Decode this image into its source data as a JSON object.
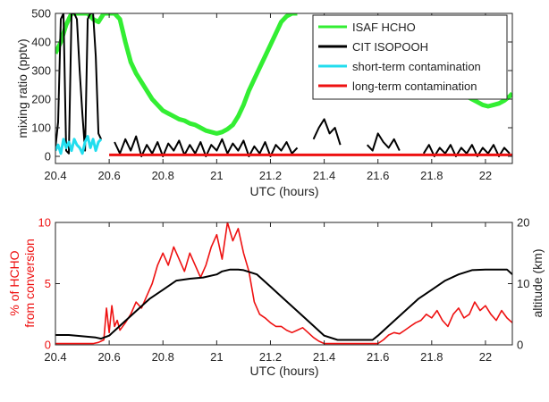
{
  "chart_data": [
    {
      "type": "line",
      "xlabel": "UTC (hours)",
      "ylabel": "mixing ratio (pptv)",
      "xlim": [
        20.4,
        22.1
      ],
      "ylim": [
        -25,
        500
      ],
      "xticks": [
        20.4,
        20.6,
        20.8,
        21,
        21.2,
        21.4,
        21.6,
        21.8,
        22
      ],
      "xtick_labels": [
        "20.4",
        "20.6",
        "20.8",
        "21",
        "21.2",
        "21.4",
        "21.6",
        "21.8",
        "22"
      ],
      "yticks": [
        0,
        100,
        200,
        300,
        400,
        500
      ],
      "ytick_labels": [
        "0",
        "100",
        "200",
        "300",
        "400",
        "500"
      ],
      "legend_position": "top-right",
      "series": [
        {
          "name": "ISAF HCHO",
          "color": "#33ee33",
          "x": [
            20.4,
            20.42,
            20.44,
            20.46,
            20.48,
            20.5,
            20.52,
            20.54,
            20.56,
            20.58,
            20.6,
            20.62,
            20.64,
            20.66,
            20.68,
            20.7,
            20.72,
            20.74,
            20.76,
            20.78,
            20.8,
            20.82,
            20.84,
            20.86,
            20.88,
            20.9,
            20.92,
            20.94,
            20.96,
            20.98,
            21.0,
            21.02,
            21.04,
            21.06,
            21.08,
            21.1,
            21.12,
            21.14,
            21.16,
            21.18,
            21.2,
            21.22,
            21.24,
            21.26,
            21.28,
            21.3,
            null,
            21.67,
            21.69,
            21.71,
            21.73,
            21.75,
            21.77,
            21.79,
            21.81,
            21.83,
            21.85,
            21.87,
            21.89,
            21.91,
            21.93,
            21.95,
            21.97,
            21.99,
            22.01,
            22.03,
            22.05,
            22.07,
            22.09,
            22.1
          ],
          "y": [
            360,
            400,
            460,
            500,
            500,
            500,
            500,
            480,
            470,
            500,
            500,
            500,
            480,
            400,
            330,
            290,
            260,
            230,
            200,
            180,
            160,
            150,
            140,
            130,
            125,
            115,
            110,
            100,
            90,
            85,
            80,
            85,
            95,
            110,
            140,
            180,
            230,
            270,
            310,
            350,
            390,
            430,
            470,
            490,
            500,
            500,
            null,
            420,
            400,
            360,
            330,
            300,
            280,
            260,
            250,
            240,
            235,
            230,
            225,
            220,
            210,
            200,
            190,
            180,
            175,
            180,
            185,
            195,
            210,
            220
          ]
        },
        {
          "name": "CIT ISOPOOH",
          "color": "#000000",
          "x": [
            20.4,
            20.41,
            20.42,
            20.43,
            20.44,
            20.45,
            20.46,
            20.47,
            20.48,
            20.49,
            20.5,
            20.51,
            20.52,
            20.53,
            20.54,
            20.55,
            20.56,
            20.57,
            null,
            20.62,
            20.64,
            20.66,
            20.68,
            20.7,
            20.72,
            20.74,
            20.76,
            20.78,
            20.8,
            20.82,
            20.84,
            20.86,
            20.88,
            20.9,
            20.92,
            20.94,
            20.96,
            20.98,
            21.0,
            21.02,
            21.04,
            21.06,
            21.08,
            21.1,
            21.12,
            21.14,
            21.16,
            21.18,
            21.2,
            21.22,
            21.24,
            21.26,
            21.28,
            21.3,
            null,
            21.36,
            21.38,
            21.4,
            21.42,
            21.44,
            21.46,
            null,
            21.56,
            21.58,
            21.6,
            21.62,
            21.64,
            21.66,
            21.68,
            null,
            21.77,
            21.79,
            21.81,
            21.83,
            21.85,
            21.87,
            21.89,
            21.91,
            21.93,
            21.95,
            21.97,
            21.99,
            22.01,
            22.03,
            22.05,
            22.07,
            22.09
          ],
          "y": [
            30,
            120,
            480,
            500,
            20,
            10,
            500,
            500,
            480,
            300,
            150,
            20,
            480,
            500,
            500,
            350,
            80,
            60,
            null,
            50,
            10,
            60,
            20,
            70,
            0,
            40,
            10,
            50,
            0,
            45,
            20,
            55,
            5,
            40,
            10,
            50,
            0,
            40,
            20,
            60,
            10,
            45,
            20,
            55,
            0,
            35,
            10,
            50,
            0,
            40,
            20,
            50,
            10,
            30,
            null,
            60,
            100,
            130,
            80,
            100,
            40,
            null,
            40,
            20,
            80,
            50,
            30,
            60,
            20,
            null,
            10,
            40,
            0,
            30,
            10,
            40,
            0,
            30,
            10,
            40,
            0,
            30,
            10,
            40,
            0,
            30,
            10
          ]
        },
        {
          "name": "short-term contamination",
          "color": "#22ddee",
          "x": [
            20.4,
            20.41,
            20.42,
            20.43,
            20.44,
            20.45,
            20.46,
            20.47,
            20.48,
            20.49,
            20.5,
            20.51,
            20.52,
            20.53,
            20.54,
            20.55,
            20.56,
            20.57
          ],
          "y": [
            20,
            40,
            10,
            60,
            30,
            50,
            20,
            60,
            40,
            30,
            10,
            50,
            70,
            30,
            60,
            20,
            50,
            60
          ]
        },
        {
          "name": "long-term contamination",
          "color": "#ee1111",
          "x": [
            20.6,
            22.1
          ],
          "y": [
            5,
            5
          ]
        }
      ]
    },
    {
      "type": "line",
      "xlabel": "UTC (hours)",
      "ylabel": "% of HCHO from conversion",
      "ylabel_lines": [
        "% of HCHO",
        "from conversion"
      ],
      "y2label": "altitude (km)",
      "xlim": [
        20.4,
        22.1
      ],
      "ylim": [
        0,
        10
      ],
      "y2lim": [
        0,
        20
      ],
      "xticks": [
        20.4,
        20.6,
        20.8,
        21,
        21.2,
        21.4,
        21.6,
        21.8,
        22
      ],
      "xtick_labels": [
        "20.4",
        "20.6",
        "20.8",
        "21",
        "21.2",
        "21.4",
        "21.6",
        "21.8",
        "22"
      ],
      "yticks": [
        0,
        5,
        10
      ],
      "ytick_labels": [
        "0",
        "5",
        "10"
      ],
      "y2ticks": [
        0,
        10,
        20
      ],
      "y2tick_labels": [
        "0",
        "10",
        "20"
      ],
      "series": [
        {
          "name": "% of HCHO from conversion",
          "axis": "left",
          "color": "#ee1111",
          "x": [
            20.4,
            20.42,
            20.44,
            20.46,
            20.48,
            20.5,
            20.52,
            20.54,
            20.56,
            20.58,
            20.59,
            20.6,
            20.61,
            20.62,
            20.63,
            20.64,
            20.66,
            20.68,
            20.7,
            20.72,
            20.74,
            20.76,
            20.78,
            20.8,
            20.82,
            20.84,
            20.86,
            20.88,
            20.9,
            20.92,
            20.94,
            20.96,
            20.98,
            21.0,
            21.02,
            21.04,
            21.06,
            21.08,
            21.1,
            21.12,
            21.14,
            21.16,
            21.18,
            21.2,
            21.22,
            21.24,
            21.26,
            21.28,
            21.3,
            21.32,
            21.34,
            21.36,
            21.38,
            21.4,
            21.42,
            21.44,
            21.46,
            21.48,
            21.5,
            21.52,
            21.54,
            21.56,
            21.58,
            21.6,
            21.62,
            21.64,
            21.66,
            21.68,
            21.7,
            21.72,
            21.74,
            21.76,
            21.78,
            21.8,
            21.82,
            21.84,
            21.86,
            21.88,
            21.9,
            21.92,
            21.94,
            21.96,
            21.98,
            22.0,
            22.02,
            22.04,
            22.06,
            22.08,
            22.1
          ],
          "y": [
            0.1,
            0.1,
            0.1,
            0.1,
            0.1,
            0.1,
            0.1,
            0.1,
            0.2,
            0.4,
            3.0,
            1.0,
            3.2,
            1.5,
            2.0,
            1.2,
            1.8,
            2.5,
            3.5,
            3.0,
            4.0,
            5.0,
            6.5,
            7.5,
            6.5,
            8.0,
            7.0,
            6.0,
            7.5,
            6.5,
            5.5,
            6.5,
            8.0,
            9.0,
            7.0,
            10.0,
            8.5,
            9.5,
            7.5,
            6.0,
            3.5,
            2.5,
            2.2,
            1.8,
            1.5,
            1.5,
            1.2,
            1.0,
            1.2,
            1.4,
            1.0,
            0.6,
            0.3,
            0.1,
            0.1,
            0.1,
            0.1,
            0.1,
            0.1,
            0.1,
            0.1,
            0.1,
            0.1,
            0.1,
            0.4,
            0.8,
            1.0,
            0.9,
            1.2,
            1.5,
            1.8,
            2.0,
            2.5,
            2.2,
            2.8,
            2.0,
            1.5,
            2.5,
            3.0,
            2.2,
            2.5,
            3.5,
            2.8,
            3.2,
            2.5,
            2.0,
            2.8,
            2.2,
            1.8
          ]
        },
        {
          "name": "altitude (km)",
          "axis": "right",
          "color": "#000000",
          "x": [
            20.4,
            20.45,
            20.5,
            20.55,
            20.57,
            20.6,
            20.65,
            20.7,
            20.75,
            20.8,
            20.85,
            20.9,
            20.95,
            21.0,
            21.02,
            21.05,
            21.08,
            21.1,
            21.15,
            21.2,
            21.25,
            21.3,
            21.35,
            21.4,
            21.45,
            21.5,
            21.55,
            21.58,
            21.6,
            21.65,
            21.7,
            21.75,
            21.8,
            21.85,
            21.9,
            21.95,
            22.0,
            22.05,
            22.08,
            22.1
          ],
          "y": [
            1.6,
            1.6,
            1.4,
            1.2,
            1.0,
            1.5,
            3.5,
            5.5,
            7.5,
            9.0,
            10.5,
            10.8,
            11.0,
            11.5,
            12.0,
            12.3,
            12.3,
            12.2,
            11.5,
            9.5,
            7.5,
            5.5,
            3.5,
            1.5,
            0.8,
            0.8,
            0.8,
            0.8,
            1.5,
            3.5,
            5.5,
            7.5,
            9.0,
            10.5,
            11.5,
            12.2,
            12.3,
            12.3,
            12.3,
            11.5
          ]
        }
      ]
    }
  ]
}
